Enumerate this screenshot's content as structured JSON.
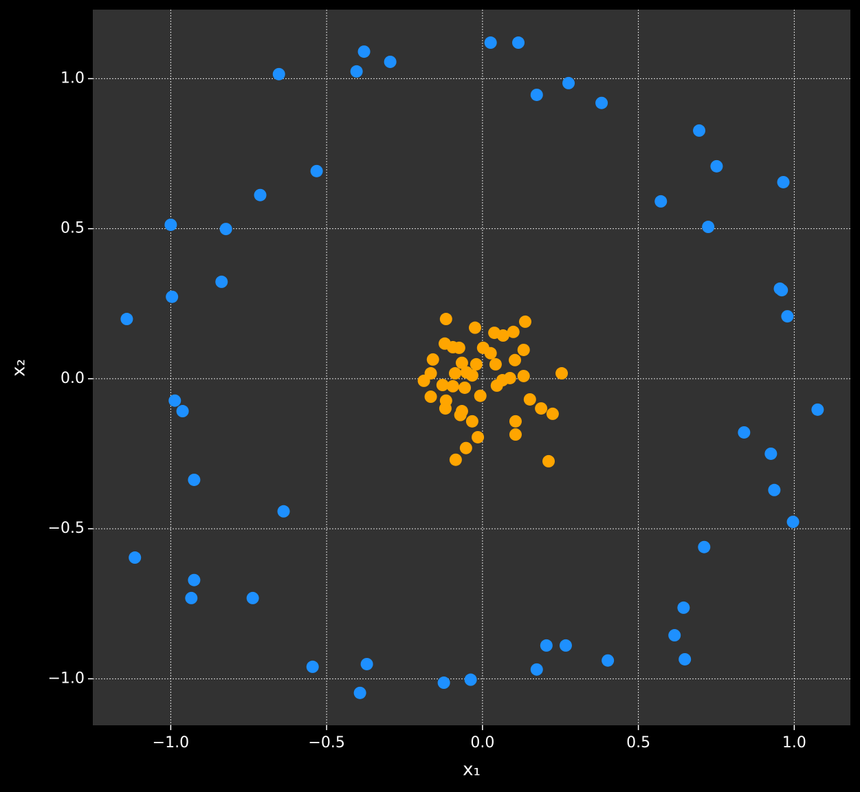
{
  "chart_data": {
    "type": "scatter",
    "xlabel": "x₁",
    "ylabel": "x₂",
    "xlim": [
      -1.25,
      1.18
    ],
    "ylim": [
      -1.155,
      1.23
    ],
    "xticks": [
      {
        "value": -1.0,
        "label": "−1.0"
      },
      {
        "value": -0.5,
        "label": "−0.5"
      },
      {
        "value": 0.0,
        "label": "0.0"
      },
      0.5,
      {
        "value": 1.0,
        "label": "1.0"
      }
    ],
    "yticks": [
      {
        "value": -1.0,
        "label": "−1.0"
      },
      {
        "value": -0.5,
        "label": "−0.5"
      },
      {
        "value": 0.0,
        "label": "0.0"
      },
      0.5,
      {
        "value": 1.0,
        "label": "1.0"
      }
    ],
    "grid": true,
    "series": [
      {
        "color": "#1e90ff",
        "x": [
          0.026,
          0.115,
          -0.38,
          -0.296,
          -0.404,
          -0.653,
          0.276,
          0.174,
          0.382,
          0.695,
          0.751,
          0.965,
          0.572,
          0.724,
          -0.532,
          -0.713,
          -1.0,
          -0.823,
          -0.837,
          -0.996,
          -1.141,
          0.954,
          0.96,
          0.978,
          1.075,
          0.839,
          0.925,
          0.936,
          0.996,
          0.711,
          0.645,
          0.616,
          0.649,
          0.402,
          0.267,
          0.205,
          0.174,
          -0.038,
          -0.124,
          -0.371,
          -0.545,
          -0.393,
          -0.638,
          -0.925,
          -0.987,
          -0.962,
          -1.115,
          -0.925,
          -0.934,
          -0.737
        ],
        "y": [
          1.12,
          1.12,
          1.09,
          1.056,
          1.024,
          1.015,
          0.985,
          0.946,
          0.919,
          0.827,
          0.708,
          0.655,
          0.591,
          0.506,
          0.692,
          0.612,
          0.513,
          0.499,
          0.323,
          0.273,
          0.199,
          0.3,
          0.295,
          0.208,
          -0.103,
          -0.179,
          -0.25,
          -0.371,
          -0.477,
          -0.561,
          -0.763,
          -0.855,
          -0.935,
          -0.939,
          -0.889,
          -0.889,
          -0.969,
          -1.003,
          -1.013,
          -0.951,
          -0.96,
          -1.047,
          -0.442,
          -0.337,
          -0.073,
          -0.108,
          -0.596,
          -0.671,
          -0.731,
          -0.731
        ]
      },
      {
        "color": "#ffa500",
        "x": [
          -0.117,
          -0.024,
          0.137,
          0.038,
          0.066,
          0.099,
          -0.121,
          -0.095,
          -0.075,
          0.002,
          0.026,
          0.132,
          -0.159,
          -0.066,
          -0.02,
          0.042,
          0.104,
          -0.166,
          -0.088,
          -0.051,
          -0.033,
          0.254,
          0.132,
          0.088,
          0.064,
          -0.188,
          -0.128,
          -0.095,
          -0.057,
          0.046,
          -0.166,
          -0.117,
          -0.007,
          0.152,
          -0.119,
          0.188,
          0.225,
          -0.066,
          -0.071,
          -0.033,
          0.106,
          0.106,
          -0.015,
          -0.053,
          -0.086,
          0.212
        ],
        "y": [
          0.199,
          0.17,
          0.19,
          0.153,
          0.144,
          0.156,
          0.117,
          0.105,
          0.103,
          0.103,
          0.085,
          0.096,
          0.064,
          0.053,
          0.048,
          0.048,
          0.062,
          0.018,
          0.018,
          0.021,
          0.011,
          0.018,
          0.009,
          0.002,
          -0.005,
          -0.007,
          -0.021,
          -0.025,
          -0.03,
          -0.023,
          -0.06,
          -0.073,
          -0.057,
          -0.069,
          -0.099,
          -0.099,
          -0.117,
          -0.108,
          -0.121,
          -0.142,
          -0.142,
          -0.186,
          -0.195,
          -0.231,
          -0.27,
          -0.275
        ]
      }
    ]
  }
}
